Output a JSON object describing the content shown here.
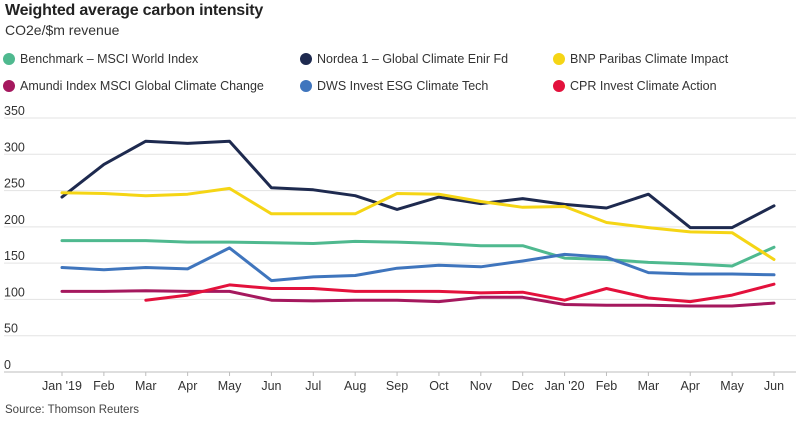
{
  "header": {
    "title": "Weighted average carbon intensity",
    "subtitle": "CO2e/$m revenue"
  },
  "footer": {
    "source": "Source: Thomson Reuters"
  },
  "chart_data": {
    "type": "line",
    "title": "Weighted average carbon intensity",
    "subtitle": "CO2e/$m revenue",
    "ylim": [
      0,
      350
    ],
    "yticks": [
      0,
      50,
      100,
      150,
      200,
      250,
      300,
      350
    ],
    "grid": true,
    "legend_position": "top",
    "categories": [
      "Jan '19",
      "Feb",
      "Mar",
      "Apr",
      "May",
      "Jun",
      "Jul",
      "Aug",
      "Sep",
      "Oct",
      "Nov",
      "Dec",
      "Jan '20",
      "Feb",
      "Mar",
      "Apr",
      "May",
      "Jun"
    ],
    "series": [
      {
        "name": "Benchmark – MSCI World Index",
        "color": "#4fb98f",
        "values": [
          181,
          181,
          181,
          179,
          179,
          178,
          177,
          180,
          179,
          177,
          174,
          174,
          157,
          155,
          151,
          149,
          146,
          172
        ]
      },
      {
        "name": "Nordea 1 – Global Climate Enir Fd",
        "color": "#1e2a4f",
        "values": [
          241,
          286,
          318,
          315,
          318,
          254,
          251,
          243,
          224,
          241,
          232,
          239,
          231,
          226,
          245,
          199,
          199,
          229
        ]
      },
      {
        "name": "BNP Paribas Climate Impact",
        "color": "#f5d515",
        "values": [
          247,
          246,
          243,
          245,
          253,
          218,
          218,
          218,
          246,
          245,
          235,
          227,
          228,
          206,
          199,
          193,
          192,
          155
        ]
      },
      {
        "name": "Amundi Index MSCI Global Climate Change",
        "color": "#a5185e",
        "values": [
          111,
          111,
          112,
          111,
          111,
          99,
          98,
          99,
          99,
          97,
          103,
          103,
          93,
          92,
          92,
          91,
          91,
          95
        ]
      },
      {
        "name": "DWS Invest ESG Climate Tech",
        "color": "#3f75bd",
        "values": [
          144,
          141,
          144,
          142,
          171,
          126,
          131,
          133,
          143,
          147,
          145,
          153,
          162,
          158,
          137,
          135,
          135,
          134
        ]
      },
      {
        "name": "CPR Invest Climate Action",
        "color": "#e3113c",
        "values": [
          null,
          null,
          99,
          106,
          120,
          115,
          115,
          111,
          111,
          111,
          109,
          110,
          99,
          115,
          102,
          97,
          106,
          121
        ]
      }
    ]
  }
}
